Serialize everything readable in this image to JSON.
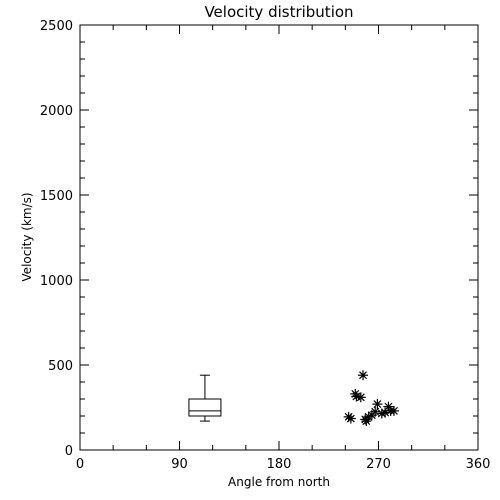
{
  "chart_data": {
    "type": "scatter",
    "title": "Velocity distribution",
    "xlabel": "Angle from north",
    "ylabel": "Velocity (km/s)",
    "xlim": [
      0,
      360
    ],
    "ylim": [
      0,
      2500
    ],
    "x_ticks": [
      0,
      90,
      180,
      270,
      360
    ],
    "y_ticks": [
      0,
      500,
      1000,
      1500,
      2000,
      2500
    ],
    "x_minor_step": 30,
    "y_minor_step": 100,
    "grid": false,
    "box": {
      "x": 113,
      "whisker_low": 170,
      "q1": 200,
      "median": 230,
      "q3": 300,
      "whisker_high": 440
    },
    "series": [
      {
        "marker": "asterisk",
        "points": [
          {
            "x": 243,
            "y": 195
          },
          {
            "x": 245,
            "y": 185
          },
          {
            "x": 249,
            "y": 330
          },
          {
            "x": 250,
            "y": 315
          },
          {
            "x": 254,
            "y": 310
          },
          {
            "x": 256,
            "y": 440
          },
          {
            "x": 258,
            "y": 180
          },
          {
            "x": 259,
            "y": 170
          },
          {
            "x": 261,
            "y": 195
          },
          {
            "x": 264,
            "y": 205
          },
          {
            "x": 267,
            "y": 225
          },
          {
            "x": 269,
            "y": 270
          },
          {
            "x": 273,
            "y": 215
          },
          {
            "x": 276,
            "y": 220
          },
          {
            "x": 279,
            "y": 255
          },
          {
            "x": 281,
            "y": 230
          },
          {
            "x": 284,
            "y": 230
          }
        ]
      }
    ]
  }
}
